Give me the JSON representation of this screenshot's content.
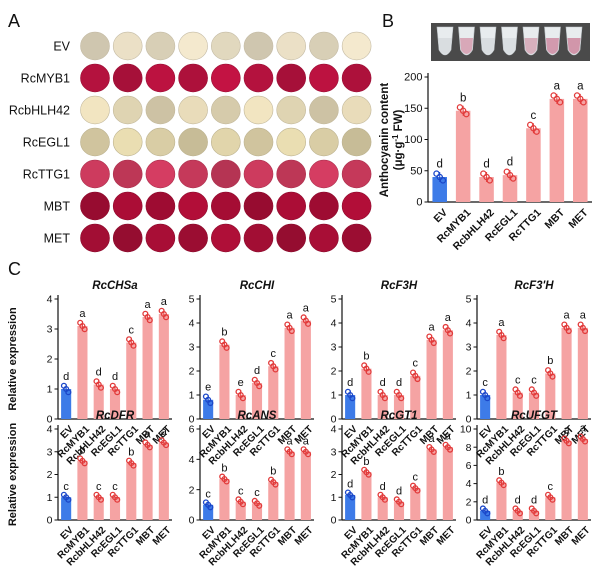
{
  "panel_labels": {
    "a": "A",
    "b": "B",
    "c": "C"
  },
  "panelA": {
    "rows": [
      {
        "label": "EV",
        "color": "#e6dcc2",
        "discs": 9
      },
      {
        "label": "RcMYB1",
        "color": "#b8123f",
        "discs": 9
      },
      {
        "label": "RcbHLH42",
        "color": "#e4d8b6",
        "discs": 9
      },
      {
        "label": "RcEGL1",
        "color": "#ddd1a8",
        "discs": 9
      },
      {
        "label": "RcTTG1",
        "color": "#c93a5c",
        "discs": 9
      },
      {
        "label": "MBT",
        "color": "#a80d35",
        "discs": 9
      },
      {
        "label": "MET",
        "color": "#a50e35",
        "discs": 9
      }
    ]
  },
  "colors": {
    "ev_bar": "#3d7be8",
    "bar": "#f5a3a3",
    "dot": "#e23b3b",
    "ev_dot": "#1b47c9",
    "axis": "#111111"
  },
  "chart_data": [
    {
      "id": "anthocyanin",
      "type": "bar",
      "title": "",
      "ylabel": "Anthocyanin content (μg·g⁻¹ FW)",
      "ylabel_main": "Anthocyanin content",
      "ylabel_unit_pre": "(μg·g",
      "ylabel_unit_exp": "-1",
      "ylabel_unit_post": " FW)",
      "categories": [
        "EV",
        "RcMYB1",
        "RcbHLH42",
        "RcEGL1",
        "RcTTG1",
        "MBT",
        "MET"
      ],
      "values": [
        40,
        146,
        40,
        43,
        118,
        165,
        165
      ],
      "letters": [
        "d",
        "b",
        "d",
        "d",
        "c",
        "a",
        "a"
      ],
      "ylim": [
        0,
        200
      ],
      "yticks": [
        0,
        50,
        100,
        150,
        200
      ]
    },
    {
      "id": "RcCHSa",
      "type": "bar",
      "title": "RcCHSa",
      "ylabel": "Relative expression",
      "categories": [
        "EV",
        "RcMYB1",
        "RcbHLH42",
        "RcEGL1",
        "RcTTG1",
        "MBT",
        "MET"
      ],
      "values": [
        1.0,
        3.1,
        1.15,
        1.0,
        2.55,
        3.4,
        3.5
      ],
      "letters": [
        "d",
        "a",
        "d",
        "d",
        "c",
        "a",
        "a"
      ],
      "ylim": [
        0,
        4
      ],
      "yticks": [
        0,
        1,
        2,
        3,
        4
      ]
    },
    {
      "id": "RcCHI",
      "type": "bar",
      "title": "RcCHI",
      "ylabel": "",
      "categories": [
        "EV",
        "RcMYB1",
        "RcbHLH42",
        "RcEGL1",
        "RcTTG1",
        "MBT",
        "MET"
      ],
      "values": [
        0.8,
        3.1,
        1.0,
        1.5,
        2.2,
        3.8,
        4.1
      ],
      "letters": [
        "e",
        "b",
        "e",
        "d",
        "c",
        "a",
        "a"
      ],
      "ylim": [
        0,
        5
      ],
      "yticks": [
        0,
        1,
        2,
        3,
        4,
        5
      ]
    },
    {
      "id": "RcF3H",
      "type": "bar",
      "title": "RcF3H",
      "ylabel": "",
      "categories": [
        "EV",
        "RcMYB1",
        "RcbHLH42",
        "RcEGL1",
        "RcTTG1",
        "MBT",
        "MET"
      ],
      "values": [
        1.0,
        2.1,
        1.0,
        1.0,
        1.8,
        3.3,
        3.7
      ],
      "letters": [
        "d",
        "b",
        "d",
        "d",
        "c",
        "a",
        "a"
      ],
      "ylim": [
        0,
        5
      ],
      "yticks": [
        0,
        1,
        2,
        3,
        4,
        5
      ]
    },
    {
      "id": "RcF3'H",
      "type": "bar",
      "title": "RcF3'H",
      "ylabel": "",
      "categories": [
        "EV",
        "RcMYB1",
        "RcbHLH42",
        "RcEGL1",
        "RcTTG1",
        "MBT",
        "MET"
      ],
      "values": [
        1.0,
        3.5,
        1.1,
        1.1,
        1.9,
        3.8,
        3.8
      ],
      "letters": [
        "c",
        "a",
        "c",
        "c",
        "b",
        "a",
        "a"
      ],
      "ylim": [
        0,
        5
      ],
      "yticks": [
        0,
        1,
        2,
        3,
        4,
        5
      ]
    },
    {
      "id": "RcDFR",
      "type": "bar",
      "title": "RcDFR",
      "ylabel": "Relative expression",
      "categories": [
        "EV",
        "RcMYB1",
        "RcbHLH42",
        "RcEGL1",
        "RcTTG1",
        "MBT",
        "MET"
      ],
      "values": [
        1.0,
        2.6,
        1.0,
        1.0,
        2.5,
        3.3,
        3.4
      ],
      "letters": [
        "c",
        "b",
        "c",
        "c",
        "b",
        "a",
        "a"
      ],
      "ylim": [
        0,
        4
      ],
      "yticks": [
        0,
        1,
        2,
        3,
        4
      ]
    },
    {
      "id": "RcANS",
      "type": "bar",
      "title": "RcANS",
      "ylabel": "",
      "categories": [
        "EV",
        "RcMYB1",
        "RcbHLH42",
        "RcEGL1",
        "RcTTG1",
        "MBT",
        "MET"
      ],
      "values": [
        1.0,
        2.7,
        1.2,
        1.1,
        2.5,
        4.5,
        4.5
      ],
      "letters": [
        "c",
        "b",
        "c",
        "c",
        "b",
        "a",
        "a"
      ],
      "ylim": [
        0,
        6
      ],
      "yticks": [
        0,
        2,
        4,
        6
      ]
    },
    {
      "id": "RcGT1",
      "type": "bar",
      "title": "RcGT1",
      "ylabel": "",
      "categories": [
        "EV",
        "RcMYB1",
        "RcbHLH42",
        "RcEGL1",
        "RcTTG1",
        "MBT",
        "MET"
      ],
      "values": [
        1.1,
        2.1,
        1.0,
        0.8,
        1.4,
        3.1,
        3.2
      ],
      "letters": [
        "d",
        "b",
        "d",
        "d",
        "c",
        "a",
        "a"
      ],
      "ylim": [
        0,
        4
      ],
      "yticks": [
        0,
        1,
        2,
        3,
        4
      ]
    },
    {
      "id": "RcUFGT",
      "type": "bar",
      "title": "RcUFGT",
      "ylabel": "",
      "categories": [
        "EV",
        "RcMYB1",
        "RcbHLH42",
        "RcEGL1",
        "RcTTG1",
        "MBT",
        "MET"
      ],
      "values": [
        1.0,
        4.1,
        1.0,
        1.0,
        2.5,
        8.7,
        8.9
      ],
      "letters": [
        "d",
        "b",
        "d",
        "d",
        "c",
        "a",
        "a"
      ],
      "ylim": [
        0,
        10
      ],
      "yticks": [
        0,
        2,
        4,
        6,
        8,
        10
      ]
    }
  ]
}
